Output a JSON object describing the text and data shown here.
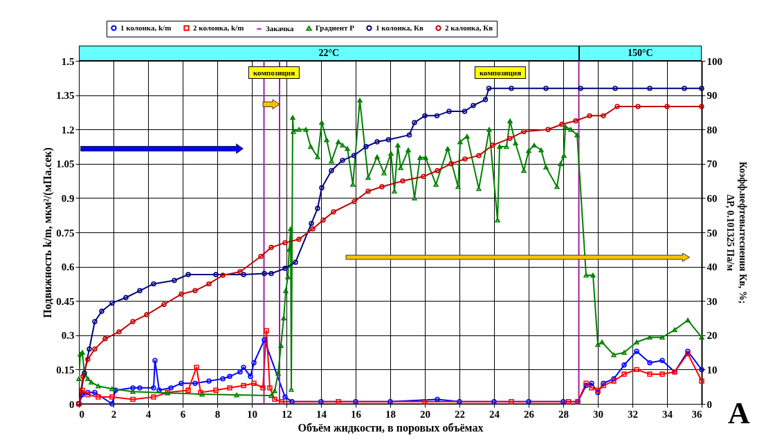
{
  "chart_data": {
    "type": "line",
    "xlabel": "Объём жидкости, в поровых объёмах",
    "ylabel": "Подвижность k/m, мкм²/(мПа.сек)",
    "y2label": "Коэфф.нефтевытеснения Кв, %;\nΔP, 0.101325 Па/м",
    "xlim": [
      0,
      36
    ],
    "xticks": [
      0,
      2,
      4,
      6,
      8,
      10,
      12,
      14,
      16,
      18,
      20,
      22,
      24,
      26,
      28,
      30,
      32,
      34,
      36
    ],
    "ylim": [
      0,
      1.5
    ],
    "yticks": [
      0,
      0.15,
      0.3,
      0.45,
      0.6,
      0.75,
      0.9,
      1.05,
      1.2,
      1.35,
      1.5
    ],
    "y2lim": [
      0,
      100
    ],
    "y2ticks": [
      0,
      10,
      20,
      30,
      40,
      50,
      60,
      70,
      80,
      90,
      100
    ],
    "grid": true,
    "legend": "top",
    "annotations": [
      "композиция",
      "композиция",
      "A",
      "22°C",
      "150°C"
    ],
    "series": [
      {
        "name": "1 колонка, k/m",
        "color": "#0000ff",
        "marker": "circle",
        "x": [
          0,
          0.2,
          0.52,
          0.92,
          1.92,
          2.12,
          3.12,
          3.52,
          4.32,
          4.4,
          4.64,
          5.32,
          5.92,
          6.72,
          7.52,
          8.32,
          8.72,
          9.32,
          9.52,
          9.92,
          10.12,
          10.72,
          11.92,
          12.32,
          14,
          16,
          18,
          20.72,
          22,
          24,
          26,
          28,
          28.84,
          29.32,
          29.64,
          30,
          30.32,
          30.92,
          31.52,
          32.24,
          33,
          33.72,
          34.44,
          35.2,
          36
        ],
        "values": [
          0,
          0.04,
          0.05,
          0.05,
          0,
          0.06,
          0.07,
          0.07,
          0.07,
          0.19,
          0.06,
          0.07,
          0.09,
          0.09,
          0.1,
          0.11,
          0.12,
          0.14,
          0.16,
          0.12,
          0.18,
          0.28,
          0.03,
          0.01,
          0.01,
          0.01,
          0.01,
          0.02,
          0.01,
          0.01,
          0.01,
          0.01,
          0.01,
          0.08,
          0.09,
          0.05,
          0.09,
          0.11,
          0.17,
          0.23,
          0.18,
          0.19,
          0.14,
          0.23,
          0.15
        ]
      },
      {
        "name": "2 колонка, k/m",
        "color": "#ff0000",
        "marker": "square",
        "x": [
          0,
          0.2,
          0.52,
          1.12,
          1.92,
          3.12,
          4.32,
          5.12,
          6.32,
          6.8,
          7.04,
          7.92,
          8.72,
          9.52,
          10.12,
          10.64,
          10.84,
          11.04,
          11.32,
          11.72,
          15,
          20,
          25,
          28.3,
          28.84,
          29.32,
          29.64,
          30,
          30.32,
          30.92,
          31.52,
          32.24,
          33,
          33.72,
          34.44,
          35.2,
          36
        ],
        "values": [
          0,
          0.06,
          0.04,
          0.03,
          0.03,
          0.02,
          0.03,
          0.05,
          0.06,
          0.16,
          0.05,
          0.06,
          0.07,
          0.08,
          0.09,
          0.07,
          0.32,
          0.07,
          0.02,
          0.01,
          0.01,
          0.01,
          0.01,
          0.01,
          0.01,
          0.09,
          0.07,
          0.06,
          0.08,
          0.1,
          0.13,
          0.15,
          0.13,
          0.13,
          0.14,
          0.22,
          0.1
        ]
      },
      {
        "name": "Закачка",
        "color": "#a020a0",
        "marker": "none",
        "x": [
          0,
          10.7,
          10.7,
          10.7,
          11.6,
          11.6,
          11.6,
          28.9,
          28.9
        ],
        "values": [
          0,
          0,
          1.5,
          0,
          0,
          1.5,
          0,
          0,
          1.5
        ]
      },
      {
        "name": "Градиент Р",
        "color": "#008000",
        "marker": "triangle",
        "axis": "y2",
        "x": [
          0,
          0.08,
          0.2,
          0.32,
          0.52,
          0.72,
          1.12,
          1.92,
          3.12,
          5.12,
          7.12,
          9.12,
          11.12,
          11.32,
          11.52,
          11.68,
          11.84,
          11.96,
          12.08,
          12.16,
          12.24,
          12.28,
          12.36,
          12.4,
          12.72,
          13.12,
          13.4,
          13.8,
          14.04,
          14.32,
          14.6,
          15,
          15.24,
          15.52,
          15.84,
          16.24,
          16.72,
          17.24,
          17.64,
          18.04,
          18.24,
          18.44,
          18.6,
          19.04,
          19.4,
          19.72,
          20.04,
          20.64,
          21.32,
          21.92,
          22.04,
          22.44,
          23.12,
          23.72,
          24.2,
          24.32,
          24.72,
          24.92,
          25.24,
          25.72,
          26,
          26.32,
          26.72,
          27,
          27.64,
          27.84,
          28.04,
          28.12,
          28.44,
          28.8,
          29.32,
          29.72,
          30,
          30.24,
          30.92,
          31.52,
          32.24,
          33,
          33.72,
          34.44,
          35.2,
          36
        ],
        "values": [
          7.3,
          14.5,
          15,
          8.9,
          7.3,
          6.3,
          5.2,
          4.4,
          3.6,
          3.2,
          2.8,
          2.6,
          2.4,
          3.8,
          8.9,
          17,
          25,
          33,
          37,
          45,
          51,
          4.2,
          83.5,
          79.4,
          80,
          80,
          75,
          72,
          82,
          77,
          70.8,
          76.4,
          75.4,
          74.4,
          64,
          88.5,
          66,
          72,
          67.3,
          73,
          62,
          75.4,
          68.8,
          74,
          60,
          71.8,
          71.8,
          64,
          74.4,
          63.3,
          76.4,
          78,
          62.7,
          80,
          53.6,
          75,
          75,
          82.5,
          76,
          68,
          73.8,
          75.4,
          74,
          69,
          63.3,
          70,
          72.4,
          80.8,
          80,
          78.4,
          37.5,
          37.5,
          17.3,
          18,
          14.3,
          15,
          18,
          19.4,
          19.4,
          21.6,
          24.4,
          19.4
        ]
      },
      {
        "name": "1 колонка, Кв",
        "color": "#000080",
        "marker": "circle",
        "axis": "y2",
        "x": [
          0,
          0.32,
          0.6,
          0.92,
          1.32,
          1.92,
          2.72,
          3.52,
          4.32,
          5.52,
          6.32,
          7.92,
          9.52,
          10.72,
          11.12,
          11.92,
          12.52,
          13.44,
          13.8,
          14.04,
          14.6,
          15.24,
          15.9,
          16.6,
          17.24,
          17.9,
          19.1,
          19.4,
          20,
          20.7,
          21.4,
          22.3,
          22.8,
          23.5,
          23.7,
          25,
          27,
          29,
          31,
          33,
          35,
          36
        ],
        "values": [
          0,
          9,
          16,
          24,
          27,
          29.4,
          31,
          33,
          35,
          36,
          37.7,
          37.7,
          37.7,
          38,
          38,
          39.5,
          41.3,
          52.6,
          57,
          63,
          68,
          71,
          72.4,
          75,
          76.4,
          77,
          78.4,
          82,
          84,
          84,
          85.3,
          85.3,
          87,
          88.7,
          92,
          92,
          92,
          92,
          92,
          92,
          92,
          92
        ]
      },
      {
        "name": "2 калонка, Кв",
        "color": "#c00000",
        "marker": "circle",
        "axis": "y2",
        "x": [
          0,
          0.24,
          0.52,
          0.92,
          1.52,
          2.32,
          3.12,
          3.92,
          4.92,
          5.92,
          6.72,
          7.52,
          8.32,
          9.32,
          10.52,
          11.12,
          11.92,
          12.72,
          13.52,
          14.12,
          14.72,
          15.92,
          16.72,
          17.52,
          18.72,
          19.92,
          20.72,
          21.52,
          22.32,
          23.12,
          23.92,
          24.92,
          25.72,
          27.12,
          27.92,
          28.72,
          29.52,
          30.32,
          31.12,
          32.32,
          34,
          36
        ],
        "values": [
          0,
          8,
          13,
          16,
          19,
          21,
          24,
          26,
          29,
          32,
          33,
          35,
          37.5,
          38.5,
          43,
          45.6,
          47,
          48,
          51,
          53.6,
          56,
          59,
          62,
          63.3,
          65,
          66.3,
          68,
          70,
          71.4,
          72.4,
          75.4,
          77.4,
          79.4,
          80,
          81.5,
          82.5,
          84,
          84,
          86.7,
          86.7,
          86.7,
          86.7
        ]
      }
    ]
  }
}
